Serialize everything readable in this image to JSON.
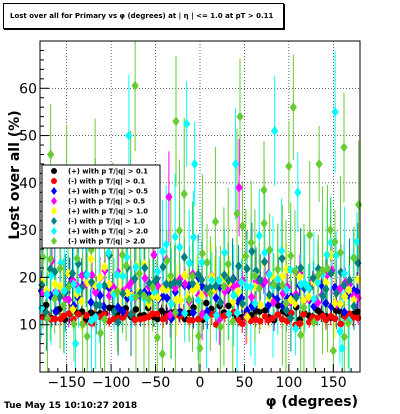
{
  "title": "Lost over all for Primary vs φ (degrees) at | η | <= 1.0 at pT > 0.11",
  "timestamp": "Tue May 15 10:10:27 2018",
  "chart_data": {
    "type": "scatter",
    "xlabel": "φ (degrees)",
    "ylabel": "Lost over all (%)",
    "xlim": [
      -180,
      180
    ],
    "ylim": [
      0,
      70
    ],
    "xticks": [
      -150,
      -100,
      -50,
      0,
      50,
      100,
      150
    ],
    "xtick_labels": [
      "−150",
      "−100",
      "−50",
      "0",
      "50",
      "100",
      "150"
    ],
    "yticks": [
      10,
      20,
      30,
      40,
      50,
      60
    ],
    "ytick_labels": [
      "10",
      "20",
      "30",
      "40",
      "50",
      "60"
    ],
    "grid": true,
    "legend_position": "left-middle",
    "series": [
      {
        "name": "(+) with pT/|q| > 0.11",
        "color": "#000000",
        "marker": "circle",
        "center": 12.5,
        "spread": 1.2,
        "err": 1.5
      },
      {
        "name": "(-) with pT/|q| > 0.11",
        "color": "#ff0000",
        "marker": "circle",
        "center": 11.5,
        "spread": 1.0,
        "err": 1.5
      },
      {
        "name": "(+) with pT/|q| > 0.5",
        "color": "#0000ff",
        "marker": "diamond",
        "center": 16,
        "spread": 3,
        "err": 3
      },
      {
        "name": "(-) with pT/|q| > 0.5",
        "color": "#ff00ff",
        "marker": "diamond",
        "center": 18,
        "spread": 4,
        "err": 4
      },
      {
        "name": "(+) with pT/|q| > 1.0",
        "color": "#ffff00",
        "marker": "diamond",
        "center": 18,
        "spread": 4,
        "err": 5
      },
      {
        "name": "(-) with pT/|q| > 1.0",
        "color": "#008080",
        "marker": "diamond",
        "center": 18,
        "spread": 5,
        "err": 6
      },
      {
        "name": "(+) with pT/|q| > 2.0",
        "color": "#00ffff",
        "marker": "diamond",
        "center": 19,
        "spread": 9,
        "err": 10
      },
      {
        "name": "(-) with pT/|q| > 2.0",
        "color": "#66cc33",
        "marker": "diamond",
        "center": 21,
        "spread": 11,
        "err": 12
      }
    ],
    "legend_labels": [
      "(+) with p T/|q| > 0.1",
      "(-) with p T/|q| > 0.1",
      "(+) with p T/|q| > 0.5",
      "(-) with p T/|q| > 0.5",
      "(+) with p T/|q| > 1.0",
      "(-) with p T/|q| > 1.0",
      "(+) with p T/|q| > 2.0",
      "(-) with p T/|q| > 2.0"
    ],
    "outliers": [
      {
        "series": 7,
        "x": -73,
        "y": 60.5
      },
      {
        "series": 7,
        "x": 105,
        "y": 56
      },
      {
        "series": 7,
        "x": 45,
        "y": 54
      },
      {
        "series": 7,
        "x": -27,
        "y": 53
      },
      {
        "series": 6,
        "x": -80,
        "y": 50
      },
      {
        "series": 6,
        "x": 152,
        "y": 55
      },
      {
        "series": 6,
        "x": -15,
        "y": 52.5
      },
      {
        "series": 6,
        "x": 84,
        "y": 51
      },
      {
        "series": 7,
        "x": 162,
        "y": 47.5
      },
      {
        "series": 7,
        "x": -168,
        "y": 46
      },
      {
        "series": 7,
        "x": 100,
        "y": 43.5
      },
      {
        "series": 7,
        "x": 134,
        "y": 44
      },
      {
        "series": 7,
        "x": -118,
        "y": 42.5
      },
      {
        "series": 6,
        "x": -6,
        "y": 44
      },
      {
        "series": 7,
        "x": -150,
        "y": 41
      },
      {
        "series": 6,
        "x": 40,
        "y": 44
      },
      {
        "series": 7,
        "x": 72,
        "y": 38.5
      },
      {
        "series": 3,
        "x": 44,
        "y": 39
      },
      {
        "series": 3,
        "x": -35,
        "y": 37
      },
      {
        "series": 7,
        "x": -78,
        "y": 38
      },
      {
        "series": 6,
        "x": 110,
        "y": 38
      },
      {
        "series": 7,
        "x": 0,
        "y": 5
      },
      {
        "series": 6,
        "x": -140,
        "y": 6
      },
      {
        "series": 6,
        "x": 160,
        "y": 5
      },
      {
        "series": 7,
        "x": 150,
        "y": 4.5
      }
    ]
  }
}
